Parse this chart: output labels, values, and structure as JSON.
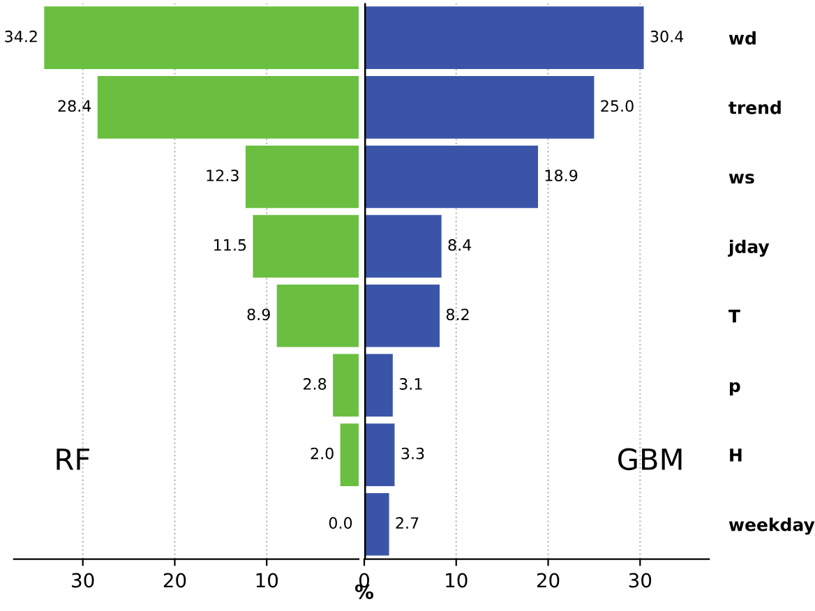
{
  "chart_data": [
    {
      "type": "bar",
      "orientation": "horizontal",
      "categories": [
        null,
        null,
        null,
        null,
        null,
        null,
        null,
        null
      ],
      "tick_labels": "x",
      "series": [
        {
          "name": "RF",
          "color": "#6abf40",
          "values": [
            34.2,
            28.4,
            12.3,
            11.5,
            8.9,
            2.8,
            2.0,
            0.0
          ],
          "value_labels": [
            "34.2",
            "28.4",
            "12.3",
            "11.5",
            "8.9",
            "2.8",
            "2.0",
            "0.0"
          ]
        }
      ],
      "xlim": [
        37.5,
        0
      ],
      "xticks": [
        30,
        20,
        10
      ],
      "grid": "x"
    },
    {
      "type": "bar",
      "orientation": "horizontal",
      "xlabel": "%",
      "categories": [
        "wd",
        "trend",
        "ws",
        "jday",
        "T",
        "p",
        "H",
        "weekday"
      ],
      "series": [
        {
          "name": "GBM",
          "color": "#3a55a8",
          "values": [
            30.4,
            25.0,
            18.9,
            8.4,
            8.2,
            3.1,
            3.3,
            2.7
          ],
          "value_labels": [
            "30.4",
            "25.0",
            "18.9",
            "8.4",
            "8.2",
            "3.1",
            "3.3",
            "2.7"
          ]
        }
      ],
      "xlim": [
        0,
        37.5
      ],
      "xticks": [
        0,
        10,
        20,
        30
      ],
      "grid": "x",
      "ref_lines": [
        {
          "axis": "x",
          "value": 0,
          "color": "#000000"
        }
      ]
    }
  ]
}
